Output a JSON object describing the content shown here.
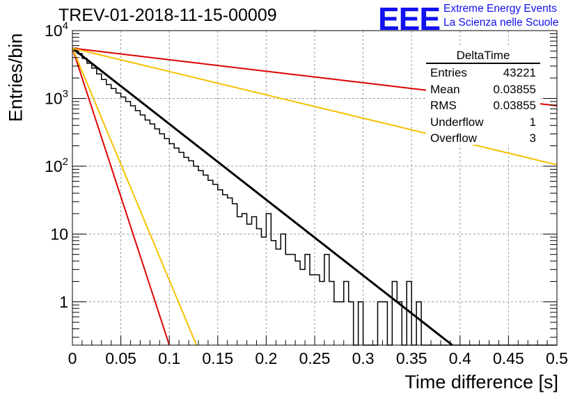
{
  "title": "TREV-01-2018-11-15-00009",
  "logo": {
    "mark": "EEE",
    "line1": "Extreme Energy Events",
    "line2": "La Scienza nelle Scuole",
    "color": "#1010f0"
  },
  "stats": {
    "name": "DeltaTime",
    "rows": [
      {
        "label": "Entries",
        "value": "43221"
      },
      {
        "label": "Mean",
        "value": "0.03855"
      },
      {
        "label": "RMS",
        "value": "0.03855"
      },
      {
        "label": "Underflow",
        "value": "1"
      },
      {
        "label": "Overflow",
        "value": "3"
      }
    ]
  },
  "chart_data": {
    "type": "histogram",
    "title": "TREV-01-2018-11-15-00009",
    "xlabel": "Time difference [s]",
    "ylabel": "Entries/bin",
    "xlim": [
      0,
      0.5
    ],
    "ylim": [
      0.23,
      10000
    ],
    "yscale": "log",
    "grid": true,
    "x_ticks": [
      "0",
      "0.05",
      "0.1",
      "0.15",
      "0.2",
      "0.25",
      "0.3",
      "0.35",
      "0.4",
      "0.45",
      "0.5"
    ],
    "y_ticks": [
      "1",
      "10",
      "10^2",
      "10^3",
      "10^4"
    ],
    "histogram": {
      "bin_width": 0.005,
      "bin_edges_from": 0,
      "values": [
        5500,
        4600,
        3900,
        3300,
        2800,
        2300,
        1900,
        1600,
        1400,
        1200,
        1050,
        900,
        780,
        660,
        570,
        480,
        420,
        355,
        300,
        255,
        215,
        185,
        160,
        135,
        120,
        100,
        86,
        74,
        62,
        54,
        45,
        38,
        34,
        28,
        18,
        20,
        14,
        18,
        12,
        9,
        20,
        8,
        6,
        10,
        5,
        5,
        4,
        3,
        5,
        2.5,
        2.5,
        2,
        5,
        2,
        1,
        1,
        2,
        1,
        0,
        1,
        0,
        0,
        0,
        1,
        1,
        0,
        2,
        1,
        0,
        2,
        0,
        1,
        0,
        0,
        0,
        0,
        0,
        0,
        0,
        0,
        0,
        0,
        0,
        0,
        0,
        0,
        0,
        0,
        0,
        0,
        0,
        0,
        0,
        0,
        0,
        0,
        0,
        0,
        0,
        0
      ]
    },
    "lines": [
      {
        "color": "#000000",
        "y0": 5500,
        "y_end": 0.23,
        "x_end": 0.392
      },
      {
        "color": "#dd0000",
        "y0": 5500,
        "y_end": 0.23,
        "x_end": 0.1
      },
      {
        "color": "#f5c000",
        "y0": 5500,
        "y_end": 0.23,
        "x_end": 0.128
      },
      {
        "color": "#dd0000",
        "y0": 5500,
        "y_end": 780,
        "x_end": 0.5
      },
      {
        "color": "#f5c000",
        "y0": 5500,
        "y_end": 105,
        "x_end": 0.5
      }
    ]
  }
}
